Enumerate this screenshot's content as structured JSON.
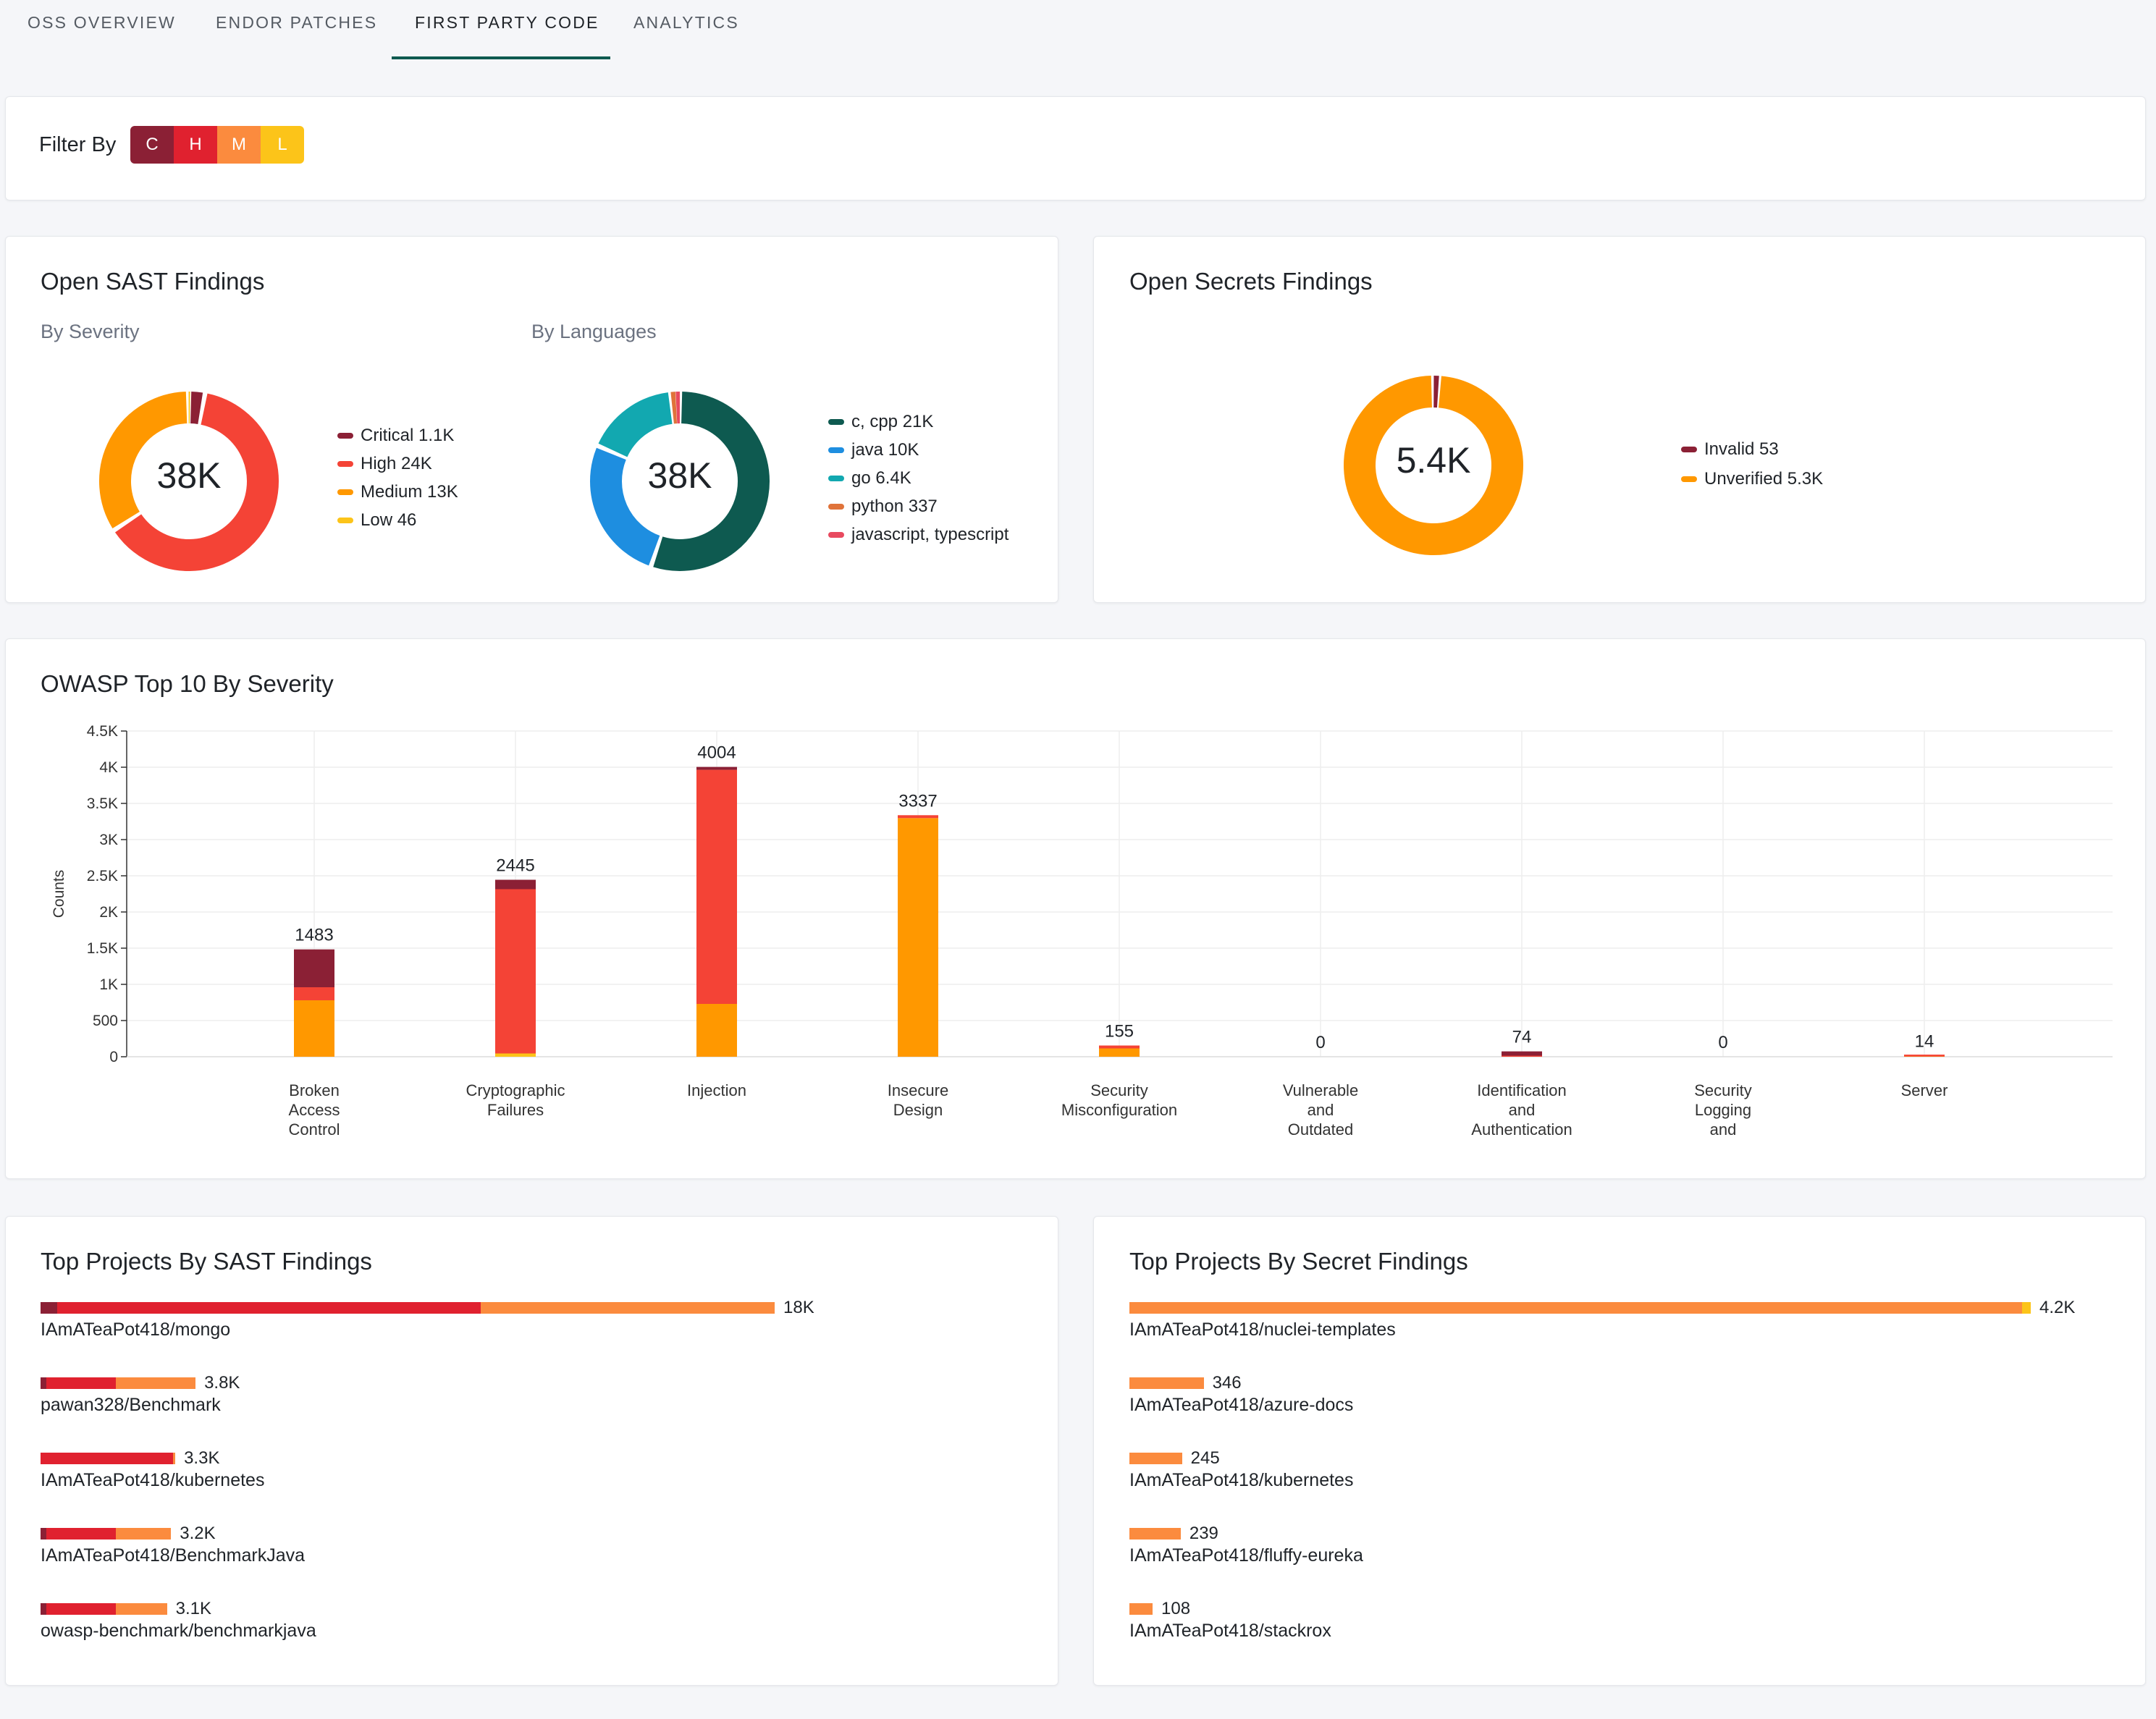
{
  "tabs": [
    {
      "label": "OSS OVERVIEW",
      "active": false
    },
    {
      "label": "ENDOR PATCHES",
      "active": false
    },
    {
      "label": "FIRST PARTY CODE",
      "active": true
    },
    {
      "label": "ANALYTICS",
      "active": false
    }
  ],
  "filter": {
    "label": "Filter By",
    "buttons": [
      {
        "label": "C",
        "color": "#8b2035"
      },
      {
        "label": "H",
        "color": "#e0212f"
      },
      {
        "label": "M",
        "color": "#fb8b3e"
      },
      {
        "label": "L",
        "color": "#fcc419"
      }
    ]
  },
  "sast": {
    "title": "Open SAST Findings",
    "by_severity": {
      "subtitle": "By Severity",
      "center": "38K",
      "legend": [
        {
          "label": "Critical 1.1K",
          "color": "#8b2035"
        },
        {
          "label": "High 24K",
          "color": "#f44336"
        },
        {
          "label": "Medium 13K",
          "color": "#ff9800"
        },
        {
          "label": "Low 46",
          "color": "#fcc419"
        }
      ]
    },
    "by_language": {
      "subtitle": "By Languages",
      "center": "38K",
      "legend": [
        {
          "label": "c, cpp 21K",
          "color": "#0e5a50"
        },
        {
          "label": "java 10K",
          "color": "#1e8ee0"
        },
        {
          "label": "go 6.4K",
          "color": "#12a8b0"
        },
        {
          "label": "python 337",
          "color": "#e0733a"
        },
        {
          "label": "javascript, typescript",
          "color": "#e84a5f"
        }
      ]
    }
  },
  "secrets": {
    "title": "Open Secrets Findings",
    "center": "5.4K",
    "legend": [
      {
        "label": "Invalid 53",
        "color": "#8b2035"
      },
      {
        "label": "Unverified 5.3K",
        "color": "#ff9800"
      }
    ]
  },
  "owasp": {
    "title": "OWASP Top 10 By Severity",
    "ylabel": "Counts"
  },
  "chart_data": [
    {
      "type": "pie",
      "title": "By Severity",
      "center_label": "38K",
      "categories": [
        "Critical",
        "High",
        "Medium",
        "Low"
      ],
      "values": [
        1100,
        24000,
        13000,
        46
      ],
      "colors": [
        "#8b2035",
        "#f44336",
        "#ff9800",
        "#fcc419"
      ]
    },
    {
      "type": "pie",
      "title": "By Languages",
      "center_label": "38K",
      "categories": [
        "c, cpp",
        "java",
        "go",
        "python",
        "javascript, typescript"
      ],
      "values": [
        21000,
        10000,
        6400,
        337,
        300
      ],
      "colors": [
        "#0e5a50",
        "#1e8ee0",
        "#12a8b0",
        "#e0733a",
        "#e84a5f"
      ]
    },
    {
      "type": "pie",
      "title": "Open Secrets Findings",
      "center_label": "5.4K",
      "categories": [
        "Invalid",
        "Unverified"
      ],
      "values": [
        53,
        5300
      ],
      "colors": [
        "#8b2035",
        "#ff9800"
      ]
    },
    {
      "type": "bar",
      "stacked": true,
      "title": "OWASP Top 10 By Severity",
      "ylabel": "Counts",
      "ylim": [
        0,
        4500
      ],
      "yticks": [
        {
          "value": 0,
          "label": "0"
        },
        {
          "value": 500,
          "label": "500"
        },
        {
          "value": 1000,
          "label": "1K"
        },
        {
          "value": 1500,
          "label": "1.5K"
        },
        {
          "value": 2000,
          "label": "2K"
        },
        {
          "value": 2500,
          "label": "2.5K"
        },
        {
          "value": 3000,
          "label": "3K"
        },
        {
          "value": 3500,
          "label": "3.5K"
        },
        {
          "value": 4000,
          "label": "4K"
        },
        {
          "value": 4500,
          "label": "4.5K"
        }
      ],
      "grid": true,
      "categories": [
        [
          "Broken",
          "Access",
          "Control"
        ],
        [
          "Cryptographic",
          "Failures"
        ],
        [
          "Injection"
        ],
        [
          "Insecure",
          "Design"
        ],
        [
          "Security",
          "Misconfiguration"
        ],
        [
          "Vulnerable",
          "and",
          "Outdated"
        ],
        [
          "Identification",
          "and",
          "Authentication"
        ],
        [
          "Security",
          "Logging",
          "and"
        ],
        [
          "Server"
        ]
      ],
      "totals": [
        1483,
        2445,
        4004,
        3337,
        155,
        0,
        74,
        0,
        14
      ],
      "series": [
        {
          "name": "Low",
          "color": "#fcc419",
          "values": [
            0,
            45,
            0,
            0,
            0,
            0,
            0,
            0,
            0
          ]
        },
        {
          "name": "Medium",
          "color": "#ff9800",
          "values": [
            780,
            0,
            730,
            3297,
            115,
            0,
            0,
            0,
            4
          ]
        },
        {
          "name": "High",
          "color": "#f44336",
          "values": [
            180,
            2270,
            3234,
            40,
            40,
            0,
            14,
            0,
            10
          ]
        },
        {
          "name": "Critical",
          "color": "#8b2035",
          "values": [
            523,
            130,
            40,
            0,
            0,
            0,
            60,
            0,
            0
          ]
        }
      ]
    },
    {
      "type": "bar",
      "orientation": "horizontal",
      "stacked": true,
      "title": "Top Projects By SAST Findings",
      "categories": [
        "IAmATeaPot418/mongo",
        "pawan328/Benchmark",
        "IAmATeaPot418/kubernetes",
        "IAmATeaPot418/BenchmarkJava",
        "owasp-benchmark/benchmarkjava"
      ],
      "value_labels": [
        "18K",
        "3.8K",
        "3.3K",
        "3.2K",
        "3.1K"
      ],
      "xlim": [
        0,
        18000
      ],
      "series": [
        {
          "name": "Critical",
          "color": "#8b2035",
          "values": [
            400,
            150,
            0,
            150,
            150
          ]
        },
        {
          "name": "High",
          "color": "#e0212f",
          "values": [
            10400,
            1700,
            3250,
            1700,
            1700
          ]
        },
        {
          "name": "Medium",
          "color": "#fb8b3e",
          "values": [
            7200,
            1950,
            50,
            1350,
            1250
          ]
        }
      ]
    },
    {
      "type": "bar",
      "orientation": "horizontal",
      "stacked": true,
      "title": "Top Projects By Secret Findings",
      "categories": [
        "IAmATeaPot418/nuclei-templates",
        "IAmATeaPot418/azure-docs",
        "IAmATeaPot418/kubernetes",
        "IAmATeaPot418/fluffy-eureka",
        "IAmATeaPot418/stackrox"
      ],
      "value_labels": [
        "4.2K",
        "346",
        "245",
        "239",
        "108"
      ],
      "xlim": [
        0,
        4200
      ],
      "series": [
        {
          "name": "Unverified",
          "color": "#fb8b3e",
          "values": [
            4160,
            346,
            245,
            239,
            108
          ]
        },
        {
          "name": "Low",
          "color": "#fcc419",
          "values": [
            40,
            0,
            0,
            0,
            0
          ]
        }
      ]
    }
  ],
  "top_sast": {
    "title": "Top Projects By SAST Findings"
  },
  "top_secrets": {
    "title": "Top Projects By Secret Findings"
  }
}
